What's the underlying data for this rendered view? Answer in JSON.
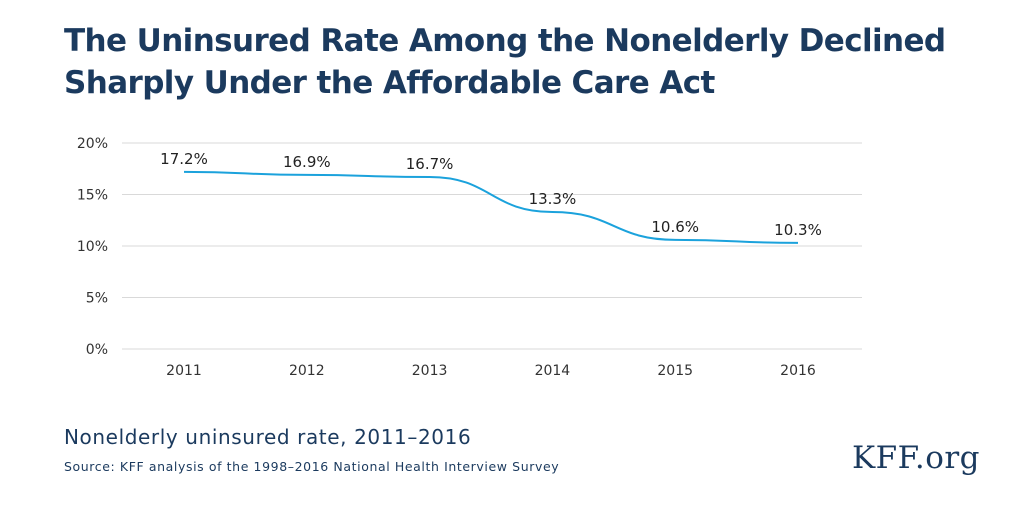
{
  "title_lines": [
    "The Uninsured Rate Among the Nonelderly Declined",
    "Sharply Under the Affordable Care Act"
  ],
  "subtitle": "Nonelderly uninsured rate, 2011–2016",
  "source": "Source: KFF analysis of the 1998–2016 National Health Interview Survey",
  "logo_text": "KFF.org",
  "colors": {
    "line": "#1ba2dc",
    "grid": "#d9d9d9",
    "title": "#1b3a5e"
  },
  "chart_data": {
    "type": "line",
    "title": "The Uninsured Rate Among the Nonelderly Declined Sharply Under the Affordable Care Act",
    "xlabel": "",
    "ylabel": "",
    "categories": [
      "2011",
      "2012",
      "2013",
      "2014",
      "2015",
      "2016"
    ],
    "series": [
      {
        "values": [
          17.2,
          16.9,
          16.7,
          13.3,
          10.6,
          10.3
        ],
        "labels": [
          "17.2%",
          "16.9%",
          "16.7%",
          "13.3%",
          "10.6%",
          "10.3%"
        ]
      }
    ],
    "ylim": [
      0,
      20
    ],
    "yticks": [
      0,
      5,
      10,
      15,
      20
    ],
    "ytick_labels": [
      "0%",
      "5%",
      "10%",
      "15%",
      "20%"
    ],
    "grid": true,
    "legend": "none"
  }
}
